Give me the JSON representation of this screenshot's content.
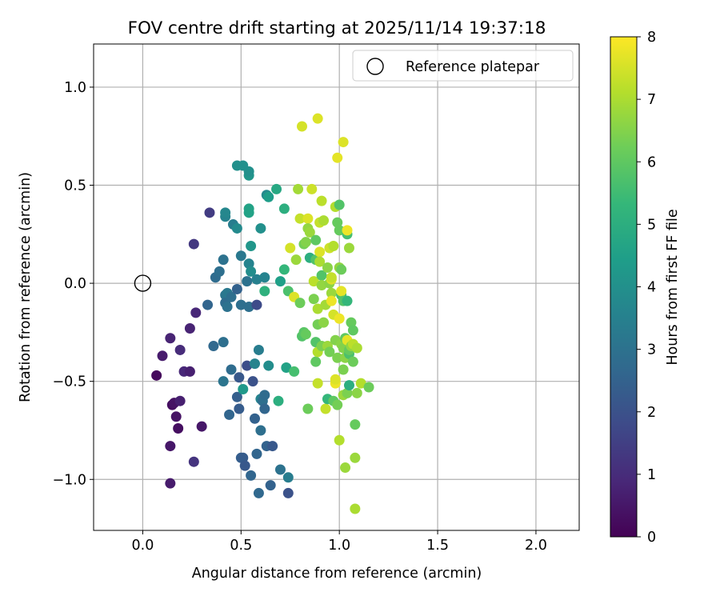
{
  "chart_data": {
    "type": "scatter",
    "title": "FOV centre drift starting at 2025/11/14 19:37:18",
    "xlabel": "Angular distance from reference (arcmin)",
    "ylabel": "Rotation from reference (arcmin)",
    "xlim": [
      -0.25,
      2.22
    ],
    "ylim": [
      -1.26,
      1.22
    ],
    "xticks": [
      0.0,
      0.5,
      1.0,
      1.5,
      2.0
    ],
    "xtick_labels": [
      "0.0",
      "0.5",
      "1.0",
      "1.5",
      "2.0"
    ],
    "yticks": [
      -1.0,
      -0.5,
      0.0,
      0.5,
      1.0
    ],
    "ytick_labels": [
      "−1.0",
      "−0.5",
      "0.0",
      "0.5",
      "1.0"
    ],
    "grid": true,
    "legend": {
      "position": "top-right",
      "label": "Reference platepar"
    },
    "reference_point": {
      "x": 0.0,
      "y": 0.0
    },
    "colorbar": {
      "label": "Hours from first FF file",
      "range": [
        0,
        8
      ],
      "ticks": [
        0,
        1,
        2,
        3,
        4,
        5,
        6,
        7,
        8
      ],
      "tick_labels": [
        "0",
        "1",
        "2",
        "3",
        "4",
        "5",
        "6",
        "7",
        "8"
      ],
      "colormap": "viridis"
    },
    "points": [
      {
        "x": 0.07,
        "y": -0.47,
        "t": 0.2
      },
      {
        "x": 0.1,
        "y": -0.37,
        "t": 0.6
      },
      {
        "x": 0.14,
        "y": -0.28,
        "t": 0.8
      },
      {
        "x": 0.15,
        "y": -0.62,
        "t": 0.3
      },
      {
        "x": 0.16,
        "y": -0.61,
        "t": 0.4
      },
      {
        "x": 0.17,
        "y": -0.68,
        "t": 0.4
      },
      {
        "x": 0.18,
        "y": -0.74,
        "t": 0.3
      },
      {
        "x": 0.14,
        "y": -0.83,
        "t": 0.5
      },
      {
        "x": 0.14,
        "y": -1.02,
        "t": 0.6
      },
      {
        "x": 0.19,
        "y": -0.6,
        "t": 0.7
      },
      {
        "x": 0.19,
        "y": -0.34,
        "t": 1.0
      },
      {
        "x": 0.21,
        "y": -0.45,
        "t": 0.9
      },
      {
        "x": 0.24,
        "y": -0.45,
        "t": 0.7
      },
      {
        "x": 0.24,
        "y": -0.23,
        "t": 0.8
      },
      {
        "x": 0.27,
        "y": -0.15,
        "t": 0.9
      },
      {
        "x": 0.26,
        "y": -0.91,
        "t": 1.2
      },
      {
        "x": 0.26,
        "y": 0.2,
        "t": 1.3
      },
      {
        "x": 0.3,
        "y": -0.73,
        "t": 0.5
      },
      {
        "x": 0.34,
        "y": 0.36,
        "t": 1.4
      },
      {
        "x": 0.33,
        "y": -0.11,
        "t": 2.6
      },
      {
        "x": 0.37,
        "y": 0.03,
        "t": 2.8
      },
      {
        "x": 0.36,
        "y": -0.32,
        "t": 2.7
      },
      {
        "x": 0.39,
        "y": 0.06,
        "t": 2.9
      },
      {
        "x": 0.41,
        "y": 0.12,
        "t": 3.0
      },
      {
        "x": 0.41,
        "y": -0.3,
        "t": 2.9
      },
      {
        "x": 0.41,
        "y": -0.5,
        "t": 3.1
      },
      {
        "x": 0.42,
        "y": -0.06,
        "t": 3.1
      },
      {
        "x": 0.42,
        "y": -0.1,
        "t": 2.8
      },
      {
        "x": 0.43,
        "y": -0.12,
        "t": 3.0
      },
      {
        "x": 0.42,
        "y": 0.34,
        "t": 3.6
      },
      {
        "x": 0.42,
        "y": 0.36,
        "t": 3.7
      },
      {
        "x": 0.43,
        "y": -0.05,
        "t": 3.2
      },
      {
        "x": 0.45,
        "y": -0.07,
        "t": 2.9
      },
      {
        "x": 0.46,
        "y": 0.3,
        "t": 3.4
      },
      {
        "x": 0.45,
        "y": -0.44,
        "t": 2.8
      },
      {
        "x": 0.44,
        "y": -0.67,
        "t": 2.6
      },
      {
        "x": 0.48,
        "y": -0.03,
        "t": 2.5
      },
      {
        "x": 0.48,
        "y": 0.28,
        "t": 3.8
      },
      {
        "x": 0.48,
        "y": 0.6,
        "t": 4.0
      },
      {
        "x": 0.49,
        "y": -0.48,
        "t": 2.2
      },
      {
        "x": 0.48,
        "y": -0.58,
        "t": 2.4
      },
      {
        "x": 0.49,
        "y": -0.64,
        "t": 2.3
      },
      {
        "x": 0.5,
        "y": -0.11,
        "t": 2.9
      },
      {
        "x": 0.5,
        "y": 0.14,
        "t": 3.2
      },
      {
        "x": 0.51,
        "y": 0.6,
        "t": 4.0
      },
      {
        "x": 0.5,
        "y": -0.89,
        "t": 2.4
      },
      {
        "x": 0.51,
        "y": -0.89,
        "t": 2.3
      },
      {
        "x": 0.52,
        "y": -0.93,
        "t": 2.2
      },
      {
        "x": 0.51,
        "y": -0.54,
        "t": 4.3
      },
      {
        "x": 0.53,
        "y": -0.42,
        "t": 1.9
      },
      {
        "x": 0.53,
        "y": 0.01,
        "t": 3.0
      },
      {
        "x": 0.54,
        "y": -0.12,
        "t": 2.9
      },
      {
        "x": 0.54,
        "y": 0.1,
        "t": 3.6
      },
      {
        "x": 0.55,
        "y": 0.06,
        "t": 3.9
      },
      {
        "x": 0.54,
        "y": 0.36,
        "t": 4.6
      },
      {
        "x": 0.54,
        "y": 0.38,
        "t": 4.6
      },
      {
        "x": 0.54,
        "y": 0.55,
        "t": 4.2
      },
      {
        "x": 0.54,
        "y": 0.57,
        "t": 4.0
      },
      {
        "x": 0.55,
        "y": 0.19,
        "t": 4.2
      },
      {
        "x": 0.55,
        "y": -0.98,
        "t": 2.6
      },
      {
        "x": 0.56,
        "y": -0.5,
        "t": 2.0
      },
      {
        "x": 0.57,
        "y": -0.41,
        "t": 3.6
      },
      {
        "x": 0.57,
        "y": -0.69,
        "t": 2.5
      },
      {
        "x": 0.58,
        "y": -0.87,
        "t": 2.6
      },
      {
        "x": 0.58,
        "y": -0.11,
        "t": 1.8
      },
      {
        "x": 0.58,
        "y": 0.02,
        "t": 3.5
      },
      {
        "x": 0.59,
        "y": -0.34,
        "t": 3.4
      },
      {
        "x": 0.6,
        "y": -0.59,
        "t": 3.6
      },
      {
        "x": 0.6,
        "y": -0.75,
        "t": 2.9
      },
      {
        "x": 0.59,
        "y": -1.07,
        "t": 2.7
      },
      {
        "x": 0.6,
        "y": 0.28,
        "t": 4.0
      },
      {
        "x": 0.61,
        "y": -0.6,
        "t": 2.9
      },
      {
        "x": 0.62,
        "y": -0.57,
        "t": 2.8
      },
      {
        "x": 0.62,
        "y": -0.64,
        "t": 2.6
      },
      {
        "x": 0.62,
        "y": 0.03,
        "t": 3.6
      },
      {
        "x": 0.62,
        "y": -0.04,
        "t": 5.1
      },
      {
        "x": 0.63,
        "y": 0.45,
        "t": 3.8
      },
      {
        "x": 0.63,
        "y": -0.83,
        "t": 2.5
      },
      {
        "x": 0.64,
        "y": 0.44,
        "t": 4.4
      },
      {
        "x": 0.64,
        "y": -0.42,
        "t": 3.9
      },
      {
        "x": 0.65,
        "y": -1.03,
        "t": 2.5
      },
      {
        "x": 0.66,
        "y": -0.83,
        "t": 2.2
      },
      {
        "x": 0.68,
        "y": 0.48,
        "t": 4.8
      },
      {
        "x": 0.69,
        "y": -0.6,
        "t": 5.0
      },
      {
        "x": 0.7,
        "y": 0.01,
        "t": 4.5
      },
      {
        "x": 0.7,
        "y": -0.95,
        "t": 3.0
      },
      {
        "x": 0.72,
        "y": 0.38,
        "t": 5.0
      },
      {
        "x": 0.72,
        "y": 0.07,
        "t": 5.3
      },
      {
        "x": 0.73,
        "y": -0.43,
        "t": 4.6
      },
      {
        "x": 0.74,
        "y": -0.04,
        "t": 5.7
      },
      {
        "x": 0.74,
        "y": -0.99,
        "t": 3.4
      },
      {
        "x": 0.74,
        "y": -1.07,
        "t": 2.0
      },
      {
        "x": 0.75,
        "y": 0.18,
        "t": 7.5
      },
      {
        "x": 0.77,
        "y": -0.45,
        "t": 5.6
      },
      {
        "x": 0.77,
        "y": -0.07,
        "t": 7.6
      },
      {
        "x": 0.78,
        "y": 0.12,
        "t": 6.8
      },
      {
        "x": 0.79,
        "y": 0.48,
        "t": 6.9
      },
      {
        "x": 0.8,
        "y": -0.1,
        "t": 6.2
      },
      {
        "x": 0.8,
        "y": 0.33,
        "t": 7.3
      },
      {
        "x": 0.81,
        "y": 0.8,
        "t": 7.5
      },
      {
        "x": 0.81,
        "y": -0.27,
        "t": 5.8
      },
      {
        "x": 0.82,
        "y": -0.25,
        "t": 5.9
      },
      {
        "x": 0.82,
        "y": 0.2,
        "t": 6.3
      },
      {
        "x": 0.83,
        "y": 0.21,
        "t": 6.5
      },
      {
        "x": 0.83,
        "y": -0.26,
        "t": 6.1
      },
      {
        "x": 0.84,
        "y": 0.33,
        "t": 7.6
      },
      {
        "x": 0.84,
        "y": 0.28,
        "t": 6.7
      },
      {
        "x": 0.85,
        "y": 0.26,
        "t": 6.8
      },
      {
        "x": 0.85,
        "y": 0.13,
        "t": 5.0
      },
      {
        "x": 0.84,
        "y": -0.64,
        "t": 6.2
      },
      {
        "x": 0.86,
        "y": 0.48,
        "t": 7.4
      },
      {
        "x": 0.87,
        "y": 0.01,
        "t": 7.2
      },
      {
        "x": 0.87,
        "y": -0.08,
        "t": 6.4
      },
      {
        "x": 0.88,
        "y": 0.12,
        "t": 5.8
      },
      {
        "x": 0.88,
        "y": -0.3,
        "t": 5.8
      },
      {
        "x": 0.88,
        "y": 0.22,
        "t": 6.0
      },
      {
        "x": 0.88,
        "y": -0.4,
        "t": 6.0
      },
      {
        "x": 0.89,
        "y": -0.35,
        "t": 7.1
      },
      {
        "x": 0.89,
        "y": 0.84,
        "t": 7.6
      },
      {
        "x": 0.89,
        "y": -0.13,
        "t": 7.0
      },
      {
        "x": 0.89,
        "y": -0.21,
        "t": 6.3
      },
      {
        "x": 0.89,
        "y": -0.51,
        "t": 7.3
      },
      {
        "x": 0.9,
        "y": 0.16,
        "t": 7.6
      },
      {
        "x": 0.9,
        "y": 0.31,
        "t": 7.3
      },
      {
        "x": 0.9,
        "y": 0.11,
        "t": 7.0
      },
      {
        "x": 0.91,
        "y": 0.42,
        "t": 7.2
      },
      {
        "x": 0.91,
        "y": 0.04,
        "t": 5.8
      },
      {
        "x": 0.91,
        "y": -0.32,
        "t": 6.4
      },
      {
        "x": 0.91,
        "y": -0.01,
        "t": 6.7
      },
      {
        "x": 0.92,
        "y": -0.2,
        "t": 6.6
      },
      {
        "x": 0.92,
        "y": 0.32,
        "t": 7.0
      },
      {
        "x": 0.93,
        "y": -0.11,
        "t": 6.9
      },
      {
        "x": 0.93,
        "y": -0.64,
        "t": 7.3
      },
      {
        "x": 0.94,
        "y": -0.59,
        "t": 5.3
      },
      {
        "x": 0.94,
        "y": 0.08,
        "t": 6.6
      },
      {
        "x": 0.94,
        "y": -0.32,
        "t": 6.8
      },
      {
        "x": 0.95,
        "y": 0.18,
        "t": 7.4
      },
      {
        "x": 0.95,
        "y": -0.35,
        "t": 6.3
      },
      {
        "x": 0.95,
        "y": 0.0,
        "t": 6.6
      },
      {
        "x": 0.96,
        "y": 0.02,
        "t": 7.6
      },
      {
        "x": 0.96,
        "y": 0.03,
        "t": 7.3
      },
      {
        "x": 0.96,
        "y": -0.05,
        "t": 6.8
      },
      {
        "x": 0.96,
        "y": -0.09,
        "t": 7.8
      },
      {
        "x": 0.97,
        "y": 0.19,
        "t": 7.1
      },
      {
        "x": 0.97,
        "y": -0.6,
        "t": 6.0
      },
      {
        "x": 0.97,
        "y": -0.16,
        "t": 7.5
      },
      {
        "x": 0.98,
        "y": -0.29,
        "t": 6.5
      },
      {
        "x": 0.98,
        "y": 0.39,
        "t": 7.1
      },
      {
        "x": 0.98,
        "y": -0.51,
        "t": 7.8
      },
      {
        "x": 0.98,
        "y": -0.49,
        "t": 7.6
      },
      {
        "x": 0.99,
        "y": -0.38,
        "t": 6.4
      },
      {
        "x": 0.99,
        "y": 0.31,
        "t": 6.1
      },
      {
        "x": 0.99,
        "y": 0.64,
        "t": 7.7
      },
      {
        "x": 0.99,
        "y": -0.62,
        "t": 6.3
      },
      {
        "x": 1.0,
        "y": 0.27,
        "t": 6.1
      },
      {
        "x": 1.0,
        "y": 0.08,
        "t": 6.7
      },
      {
        "x": 1.0,
        "y": 0.4,
        "t": 5.8
      },
      {
        "x": 1.0,
        "y": -0.18,
        "t": 7.8
      },
      {
        "x": 1.0,
        "y": -0.8,
        "t": 7.1
      },
      {
        "x": 1.01,
        "y": -0.06,
        "t": 5.6
      },
      {
        "x": 1.01,
        "y": 0.07,
        "t": 6.2
      },
      {
        "x": 1.01,
        "y": -0.31,
        "t": 6.6
      },
      {
        "x": 1.01,
        "y": -0.04,
        "t": 7.7
      },
      {
        "x": 1.02,
        "y": 0.72,
        "t": 7.6
      },
      {
        "x": 1.02,
        "y": -0.33,
        "t": 6.5
      },
      {
        "x": 1.02,
        "y": -0.44,
        "t": 6.4
      },
      {
        "x": 1.02,
        "y": -0.09,
        "t": 5.8
      },
      {
        "x": 1.02,
        "y": -0.57,
        "t": 6.8
      },
      {
        "x": 1.03,
        "y": -0.94,
        "t": 6.8
      },
      {
        "x": 1.03,
        "y": -0.28,
        "t": 6.0
      },
      {
        "x": 1.03,
        "y": -0.38,
        "t": 6.6
      },
      {
        "x": 1.04,
        "y": 0.25,
        "t": 5.6
      },
      {
        "x": 1.04,
        "y": -0.29,
        "t": 7.7
      },
      {
        "x": 1.04,
        "y": 0.27,
        "t": 7.8
      },
      {
        "x": 1.04,
        "y": -0.09,
        "t": 5.3
      },
      {
        "x": 1.04,
        "y": -0.56,
        "t": 6.4
      },
      {
        "x": 1.05,
        "y": -0.52,
        "t": 5.0
      },
      {
        "x": 1.05,
        "y": -0.36,
        "t": 5.7
      },
      {
        "x": 1.05,
        "y": -0.34,
        "t": 6.1
      },
      {
        "x": 1.05,
        "y": 0.18,
        "t": 6.8
      },
      {
        "x": 1.06,
        "y": -0.2,
        "t": 6.1
      },
      {
        "x": 1.06,
        "y": -0.32,
        "t": 6.7
      },
      {
        "x": 1.07,
        "y": -0.24,
        "t": 6.0
      },
      {
        "x": 1.07,
        "y": -0.4,
        "t": 6.2
      },
      {
        "x": 1.07,
        "y": -0.31,
        "t": 7.2
      },
      {
        "x": 1.08,
        "y": -0.72,
        "t": 6.1
      },
      {
        "x": 1.08,
        "y": -1.15,
        "t": 7.0
      },
      {
        "x": 1.08,
        "y": -0.89,
        "t": 6.8
      },
      {
        "x": 1.09,
        "y": -0.33,
        "t": 7.0
      },
      {
        "x": 1.09,
        "y": -0.56,
        "t": 6.6
      },
      {
        "x": 1.11,
        "y": -0.51,
        "t": 7.1
      },
      {
        "x": 1.15,
        "y": -0.53,
        "t": 6.2
      }
    ]
  }
}
